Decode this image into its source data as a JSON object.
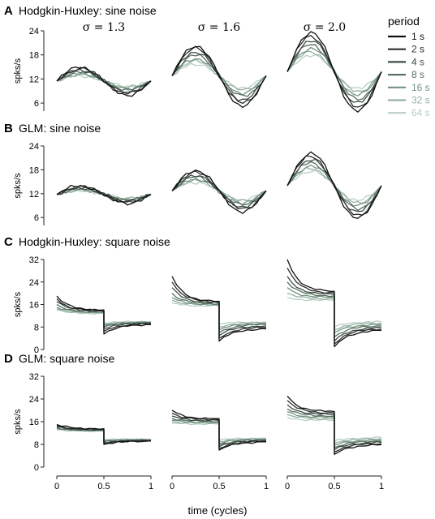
{
  "xlabel": "time (cycles)",
  "ylabel": "spks/s",
  "x_ticks": [
    "0",
    "0.5",
    "1"
  ],
  "sigma_labels": [
    "σ = 1.3",
    "σ = 1.6",
    "σ = 2.0"
  ],
  "legend": {
    "title": "period",
    "entries": [
      "1 s",
      "2 s",
      "4 s",
      "8 s",
      "16 s",
      "32 s",
      "64 s"
    ],
    "colors": [
      "#111111",
      "#2b2e2c",
      "#3d4d45",
      "#57705f",
      "#739380",
      "#95b0a2",
      "#b9cec4"
    ]
  },
  "chart_data": [
    {
      "type": "line",
      "panel": "A",
      "title": "Hodgkin-Huxley: sine noise",
      "waveform": "sine",
      "ylim": [
        4,
        24
      ],
      "yticks": [
        "6",
        "12",
        "18",
        "24"
      ],
      "xlim": [
        0,
        1
      ],
      "subplots": [
        {
          "sigma": "σ = 1.3",
          "baseline": 11.5,
          "amplitudes": [
            3.5,
            3.1,
            2.7,
            2.3,
            1.9,
            1.6,
            1.3
          ]
        },
        {
          "sigma": "σ = 1.6",
          "baseline": 12.8,
          "amplitudes": [
            7.5,
            6.8,
            6.0,
            5.1,
            4.3,
            3.6,
            3.0
          ]
        },
        {
          "sigma": "σ = 2.0",
          "baseline": 13.8,
          "amplitudes": [
            9.8,
            8.8,
            7.8,
            6.8,
            5.8,
            4.9,
            4.2
          ]
        }
      ]
    },
    {
      "type": "line",
      "panel": "B",
      "title": "GLM: sine noise",
      "waveform": "sine",
      "ylim": [
        4,
        24
      ],
      "yticks": [
        "6",
        "12",
        "18",
        "24"
      ],
      "xlim": [
        0,
        1
      ],
      "subplots": [
        {
          "sigma": "σ = 1.3",
          "baseline": 11.8,
          "amplitudes": [
            2.2,
            1.9,
            1.7,
            1.5,
            1.3,
            1.1,
            1.0
          ]
        },
        {
          "sigma": "σ = 1.6",
          "baseline": 12.7,
          "amplitudes": [
            5.2,
            4.6,
            4.0,
            3.5,
            3.0,
            2.6,
            2.2
          ]
        },
        {
          "sigma": "σ = 2.0",
          "baseline": 14.0,
          "amplitudes": [
            8.2,
            7.4,
            6.6,
            5.8,
            5.0,
            4.3,
            3.7
          ]
        }
      ]
    },
    {
      "type": "line",
      "panel": "C",
      "title": "Hodgkin-Huxley: square noise",
      "waveform": "square",
      "ylim": [
        0,
        32
      ],
      "yticks": [
        "0",
        "8",
        "16",
        "24",
        "32"
      ],
      "xlim": [
        0,
        1
      ],
      "subplots": [
        {
          "sigma": "σ = 1.3",
          "high_start": [
            19.0,
            18.0,
            17.0,
            16.0,
            15.0,
            14.5,
            14.0
          ],
          "high_end": [
            14.0,
            13.8,
            13.6,
            13.4,
            13.2,
            13.0,
            12.8
          ],
          "low_start": [
            5.5,
            6.5,
            7.5,
            8.0,
            8.5,
            9.0,
            9.5
          ],
          "low_end": [
            9.0,
            9.2,
            9.4,
            9.6,
            9.7,
            9.8,
            9.9
          ]
        },
        {
          "sigma": "σ = 1.6",
          "high_start": [
            26.0,
            24.0,
            22.0,
            20.0,
            18.5,
            17.5,
            16.5
          ],
          "high_end": [
            17.0,
            16.8,
            16.5,
            16.2,
            16.0,
            15.8,
            15.5
          ],
          "low_start": [
            3.0,
            4.0,
            5.0,
            6.0,
            7.0,
            8.0,
            9.0
          ],
          "low_end": [
            7.5,
            8.0,
            8.5,
            9.0,
            9.3,
            9.6,
            9.8
          ]
        },
        {
          "sigma": "σ = 2.0",
          "high_start": [
            32.0,
            29.0,
            26.0,
            24.0,
            22.0,
            20.0,
            18.5
          ],
          "high_end": [
            20.5,
            20.0,
            19.5,
            19.0,
            18.5,
            18.0,
            17.5
          ],
          "low_start": [
            1.0,
            2.0,
            3.0,
            4.5,
            6.0,
            7.0,
            8.0
          ],
          "low_end": [
            7.0,
            7.5,
            8.0,
            8.5,
            9.0,
            9.5,
            10.0
          ]
        }
      ]
    },
    {
      "type": "line",
      "panel": "D",
      "title": "GLM: square noise",
      "waveform": "square",
      "ylim": [
        0,
        32
      ],
      "yticks": [
        "0",
        "8",
        "16",
        "24",
        "32"
      ],
      "xlim": [
        0,
        1
      ],
      "subplots": [
        {
          "sigma": "σ = 1.3",
          "high_start": [
            15.0,
            14.6,
            14.2,
            13.9,
            13.6,
            13.4,
            13.2
          ],
          "high_end": [
            13.5,
            13.3,
            13.1,
            13.0,
            12.9,
            12.8,
            12.7
          ],
          "low_start": [
            8.0,
            8.3,
            8.6,
            8.9,
            9.2,
            9.5,
            9.8
          ],
          "low_end": [
            9.2,
            9.3,
            9.4,
            9.5,
            9.6,
            9.7,
            9.8
          ]
        },
        {
          "sigma": "σ = 1.6",
          "high_start": [
            20.0,
            19.0,
            18.0,
            17.2,
            16.5,
            16.0,
            15.5
          ],
          "high_end": [
            17.0,
            16.7,
            16.4,
            16.1,
            15.8,
            15.5,
            15.2
          ],
          "low_start": [
            6.0,
            6.6,
            7.2,
            7.8,
            8.4,
            9.0,
            9.5
          ],
          "low_end": [
            9.0,
            9.2,
            9.4,
            9.6,
            9.8,
            10.0,
            10.2
          ]
        },
        {
          "sigma": "σ = 2.0",
          "high_start": [
            25.0,
            23.5,
            22.0,
            20.5,
            19.5,
            18.5,
            17.5
          ],
          "high_end": [
            19.5,
            19.0,
            18.5,
            18.0,
            17.5,
            17.0,
            16.5
          ],
          "low_start": [
            4.5,
            5.3,
            6.1,
            6.9,
            7.7,
            8.5,
            9.2
          ],
          "low_end": [
            8.0,
            8.4,
            8.8,
            9.2,
            9.6,
            10.0,
            10.4
          ]
        }
      ]
    }
  ]
}
